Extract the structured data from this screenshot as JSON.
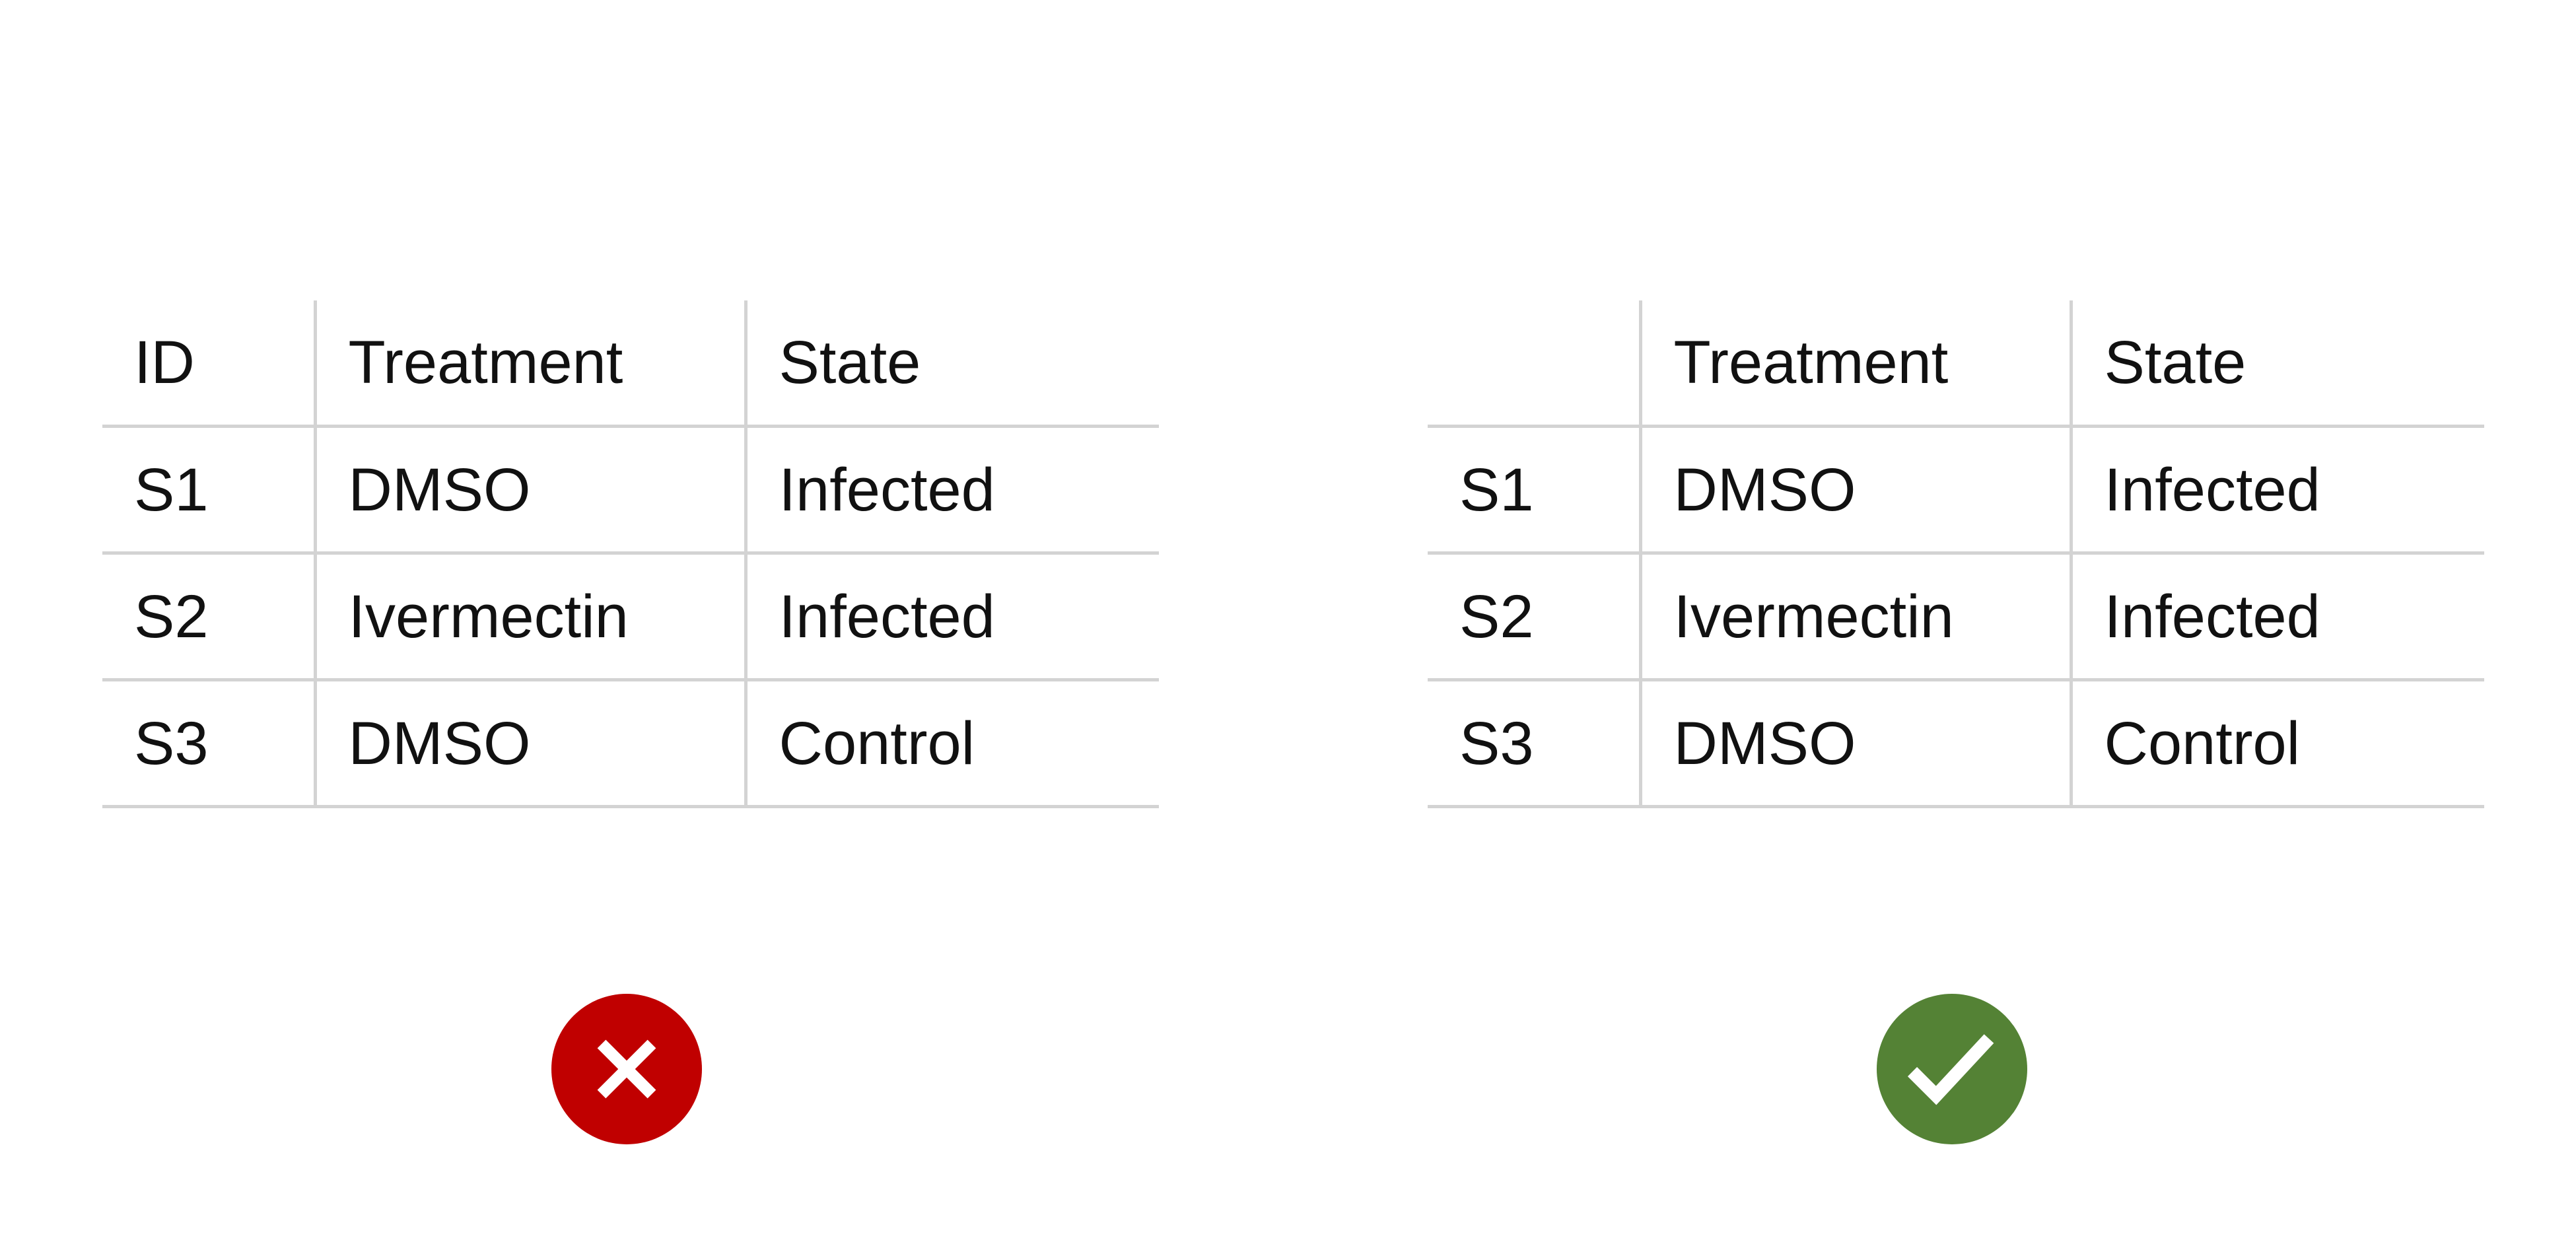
{
  "examples": [
    {
      "verdict": "incorrect",
      "headers": [
        "ID",
        "Treatment",
        "State"
      ],
      "rows": [
        [
          "S1",
          "DMSO",
          "Infected"
        ],
        [
          "S2",
          "Ivermectin",
          "Infected"
        ],
        [
          "S3",
          "DMSO",
          "Control"
        ]
      ],
      "badge_icon": "x-cross-icon",
      "badge_color": "#c00000"
    },
    {
      "verdict": "correct",
      "headers": [
        "",
        "Treatment",
        "State"
      ],
      "rows": [
        [
          "S1",
          "DMSO",
          "Infected"
        ],
        [
          "S2",
          "Ivermectin",
          "Infected"
        ],
        [
          "S3",
          "DMSO",
          "Control"
        ]
      ],
      "badge_icon": "check-mark-icon",
      "badge_color": "#548235"
    }
  ],
  "colors": {
    "grid_line": "#d3d3d3",
    "text": "#111111",
    "icon_stroke": "#ffffff"
  }
}
